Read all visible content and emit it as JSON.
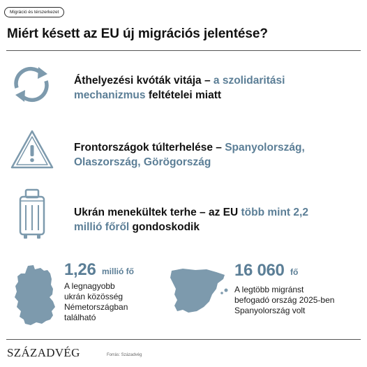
{
  "tag": "Migráció és térszerkezet",
  "title": "Miért késett az EU új migrációs jelentése?",
  "rows": [
    {
      "icon": "refresh-arrows-icon",
      "text_plain_1": "Áthelyezési kvóták vitája – ",
      "text_accent_1": "a szolidaritási mechanizmus",
      "text_plain_2": " feltételei miatt"
    },
    {
      "icon": "warning-triangle-icon",
      "text_plain_1": "Frontországok túlterhelése – ",
      "text_accent_1": "Spanyolország, Olaszország, Görögország"
    },
    {
      "icon": "suitcase-icon",
      "text_plain_1": "Ukrán menekültek terhe – az EU ",
      "text_accent_1": "több mint 2,2 millió főről",
      "text_plain_2": " gondoskodik"
    }
  ],
  "stats": [
    {
      "map": "germany-map-icon",
      "value": "1,26",
      "unit": "millió fő",
      "desc_lines": [
        "A legnagyobb",
        "ukrán közösség",
        "Németországban",
        "található"
      ]
    },
    {
      "map": "spain-map-icon",
      "value": "16 060",
      "unit": "fő",
      "desc_lines": [
        "A legtöbb migránst",
        "befogadó ország 2025-ben",
        "Spanyolország volt"
      ]
    }
  ],
  "footer": {
    "brand": "SZÁZADVÉG",
    "source": "Forrás: Századvég"
  },
  "colors": {
    "accent": "#5b7e96",
    "icon": "#7d9aad",
    "text": "#111111"
  }
}
